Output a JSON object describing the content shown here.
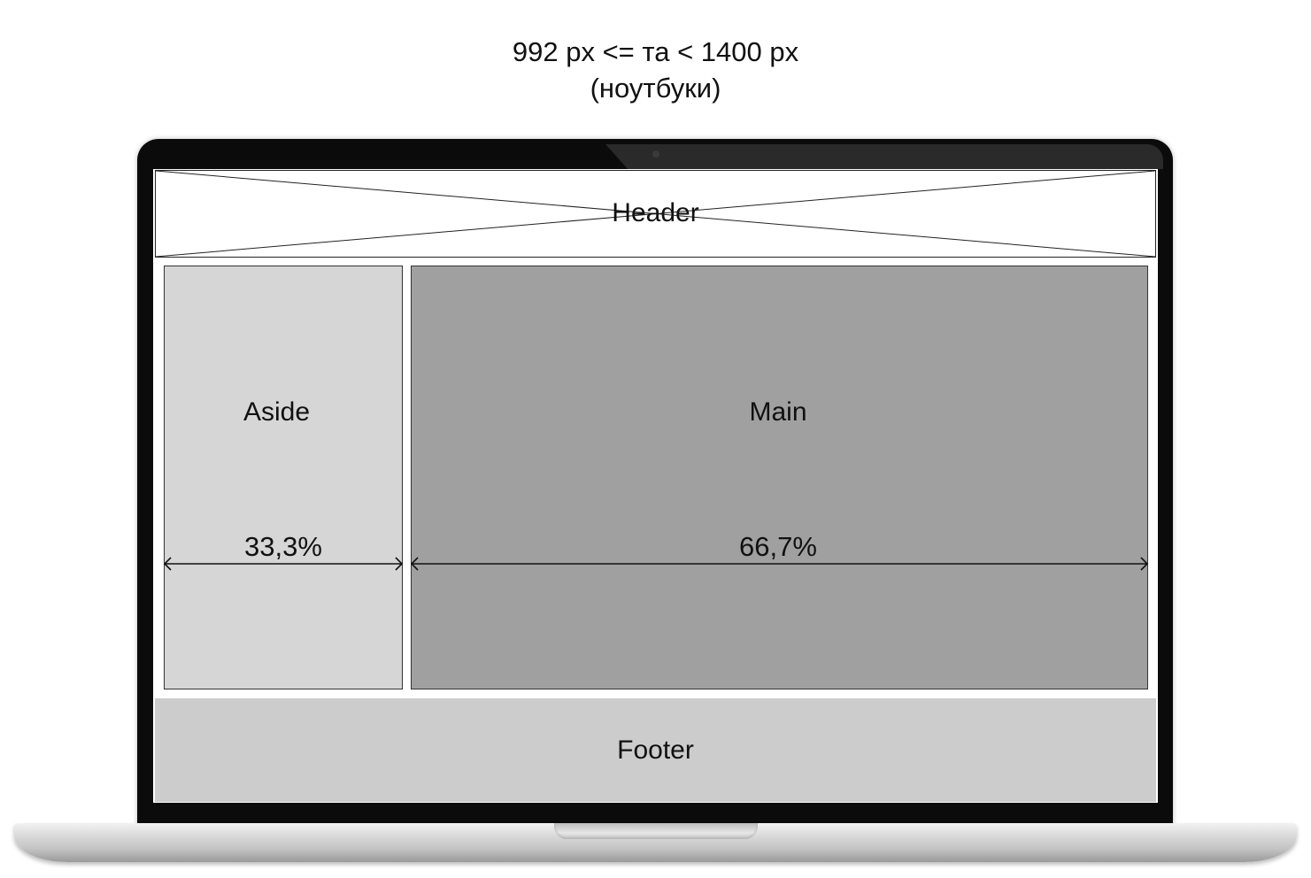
{
  "caption": {
    "breakpoint": "992 px <= та < 1400 px",
    "device": "(ноутбуки)"
  },
  "layout": {
    "header": {
      "label": "Header"
    },
    "aside": {
      "label": "Aside",
      "width_label": "33,3%",
      "width_percent": 33.3
    },
    "main": {
      "label": "Main",
      "width_label": "66,7%",
      "width_percent": 66.7
    },
    "footer": {
      "label": "Footer"
    }
  },
  "colors": {
    "aside_fill": "#d6d6d6",
    "main_fill": "#a0a0a0",
    "footer_fill": "#cccccc",
    "laptop_bezel": "#0b0b0b"
  },
  "icons": {
    "device": "laptop-icon",
    "placeholder": "crossed-placeholder-icon"
  }
}
